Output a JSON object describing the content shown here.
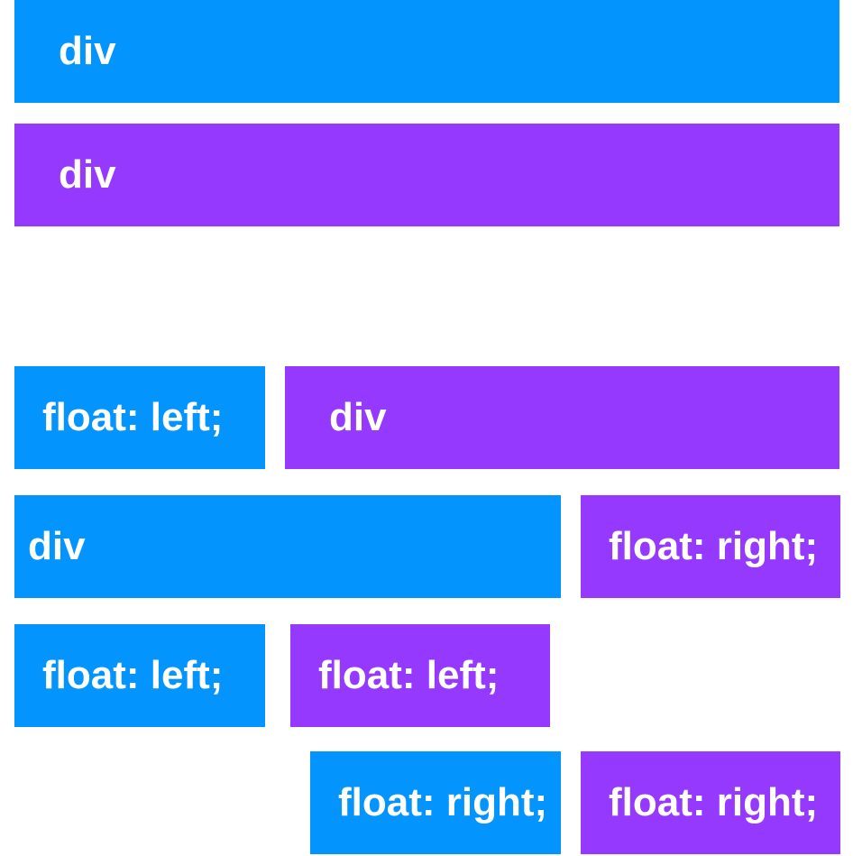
{
  "colors": {
    "blue": "#0394fe",
    "purple": "#9639ff",
    "background": "#ffffff",
    "text": "#ffffff"
  },
  "example1": {
    "block1": "div",
    "block2": "div"
  },
  "example2": {
    "float_left": "float: left;",
    "div": "div"
  },
  "example3": {
    "div": "div",
    "float_right": "float: right;"
  },
  "example4": {
    "float_left_1": "float: left;",
    "float_left_2": "float: left;"
  },
  "example5": {
    "float_right_1": "float: right;",
    "float_right_2": "float: right;"
  }
}
